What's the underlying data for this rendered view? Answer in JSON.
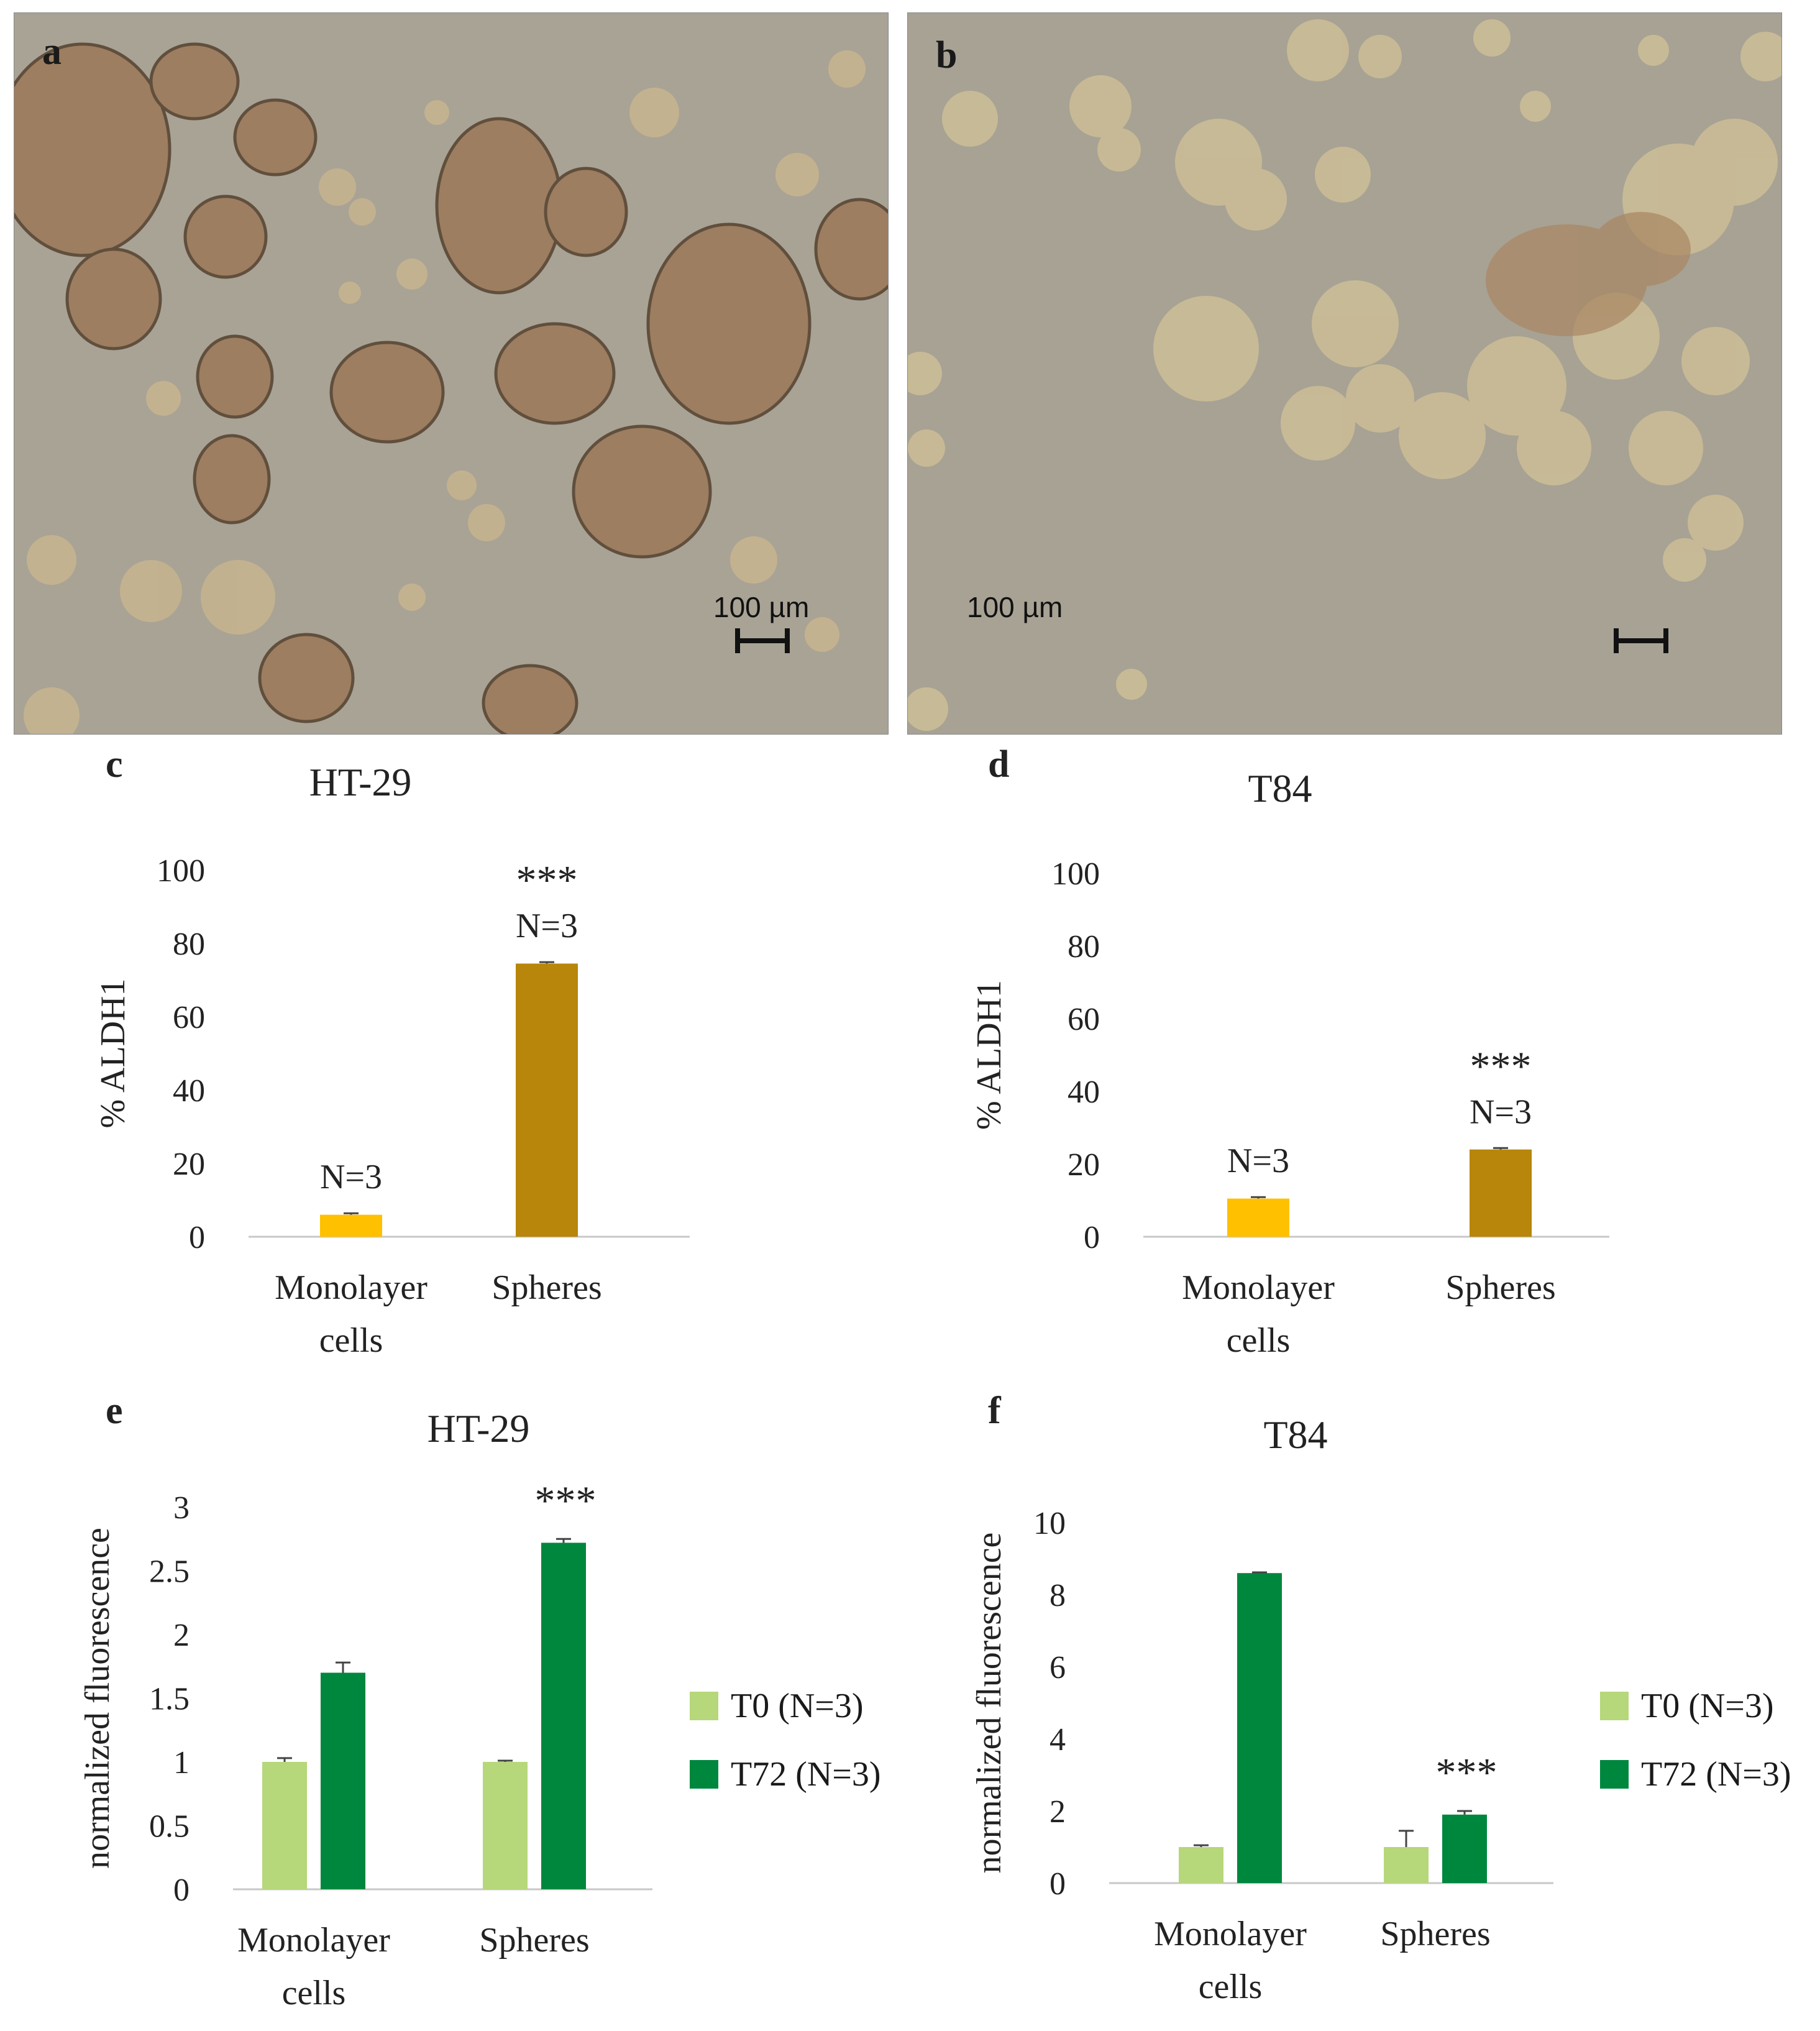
{
  "panels": {
    "a": {
      "letter": "a",
      "scale_label": "100 µm"
    },
    "b": {
      "letter": "b",
      "scale_label": "100 µm"
    }
  },
  "colors": {
    "monolayer": "#FFC000",
    "spheres": "#B8860B",
    "t0": "#B6D77A",
    "t72": "#00873E",
    "photo_bg": "#A8A294",
    "cell": "#C9B58E",
    "sphere_dark": "#9C7B5C"
  },
  "chart_data": [
    {
      "id": "c",
      "letter": "c",
      "type": "bar",
      "title": "HT-29",
      "ylabel": "% ALDH1",
      "ylim": [
        0,
        100
      ],
      "yticks": [
        "0",
        "20",
        "40",
        "60",
        "80",
        "100"
      ],
      "categories": [
        "Monolayer cells",
        "Spheres"
      ],
      "category_lines": [
        [
          "Monolayer",
          "cells"
        ],
        [
          "Spheres"
        ]
      ],
      "values": [
        6,
        74.5
      ],
      "errors": [
        0.4,
        0.4
      ],
      "bar_colors": [
        "#FFC000",
        "#B8860B"
      ],
      "annotations": [
        [
          "N=3"
        ],
        [
          "***",
          "N=3"
        ]
      ]
    },
    {
      "id": "d",
      "letter": "d",
      "type": "bar",
      "title": "T84",
      "ylabel": "% ALDH1",
      "ylim": [
        0,
        100
      ],
      "yticks": [
        "0",
        "20",
        "40",
        "60",
        "80",
        "100"
      ],
      "categories": [
        "Monolayer cells",
        "Spheres"
      ],
      "category_lines": [
        [
          "Monolayer",
          "cells"
        ],
        [
          "Spheres"
        ]
      ],
      "values": [
        10.5,
        24
      ],
      "errors": [
        0.4,
        0.4
      ],
      "bar_colors": [
        "#FFC000",
        "#B8860B"
      ],
      "annotations": [
        [
          "N=3"
        ],
        [
          "***",
          "N=3"
        ]
      ]
    },
    {
      "id": "e",
      "letter": "e",
      "type": "bar",
      "title": "HT-29",
      "ylabel": "normalized fluorescence",
      "ylim": [
        0,
        3
      ],
      "yticks": [
        "0",
        "0.5",
        "1",
        "1.5",
        "2",
        "2.5",
        "3"
      ],
      "categories": [
        "Monolayer cells",
        "Spheres"
      ],
      "category_lines": [
        [
          "Monolayer",
          "cells"
        ],
        [
          "Spheres"
        ]
      ],
      "series": [
        {
          "name": "T0 (N=3)",
          "values": [
            1.0,
            1.0
          ],
          "errors": [
            0.03,
            0.01
          ],
          "color": "#B6D77A"
        },
        {
          "name": "T72 (N=3)",
          "values": [
            1.7,
            2.72
          ],
          "errors": [
            0.08,
            0.03
          ],
          "color": "#00873E"
        }
      ],
      "annotations": [
        [],
        [
          "***"
        ]
      ]
    },
    {
      "id": "f",
      "letter": "f",
      "type": "bar",
      "title": "T84",
      "ylabel": "normalized fluorescence",
      "ylim": [
        0,
        10
      ],
      "yticks": [
        "0",
        "2",
        "4",
        "6",
        "8",
        "10"
      ],
      "categories": [
        "Monolayer cells",
        "Spheres"
      ],
      "category_lines": [
        [
          "Monolayer",
          "cells"
        ],
        [
          "Spheres"
        ]
      ],
      "series": [
        {
          "name": "T0 (N=3)",
          "values": [
            1.0,
            1.0
          ],
          "errors": [
            0.05,
            0.45
          ],
          "color": "#B6D77A"
        },
        {
          "name": "T72 (N=3)",
          "values": [
            8.6,
            1.9
          ],
          "errors": [
            0.02,
            0.1
          ],
          "color": "#00873E"
        }
      ],
      "annotations": [
        [],
        [
          "***"
        ]
      ]
    }
  ]
}
